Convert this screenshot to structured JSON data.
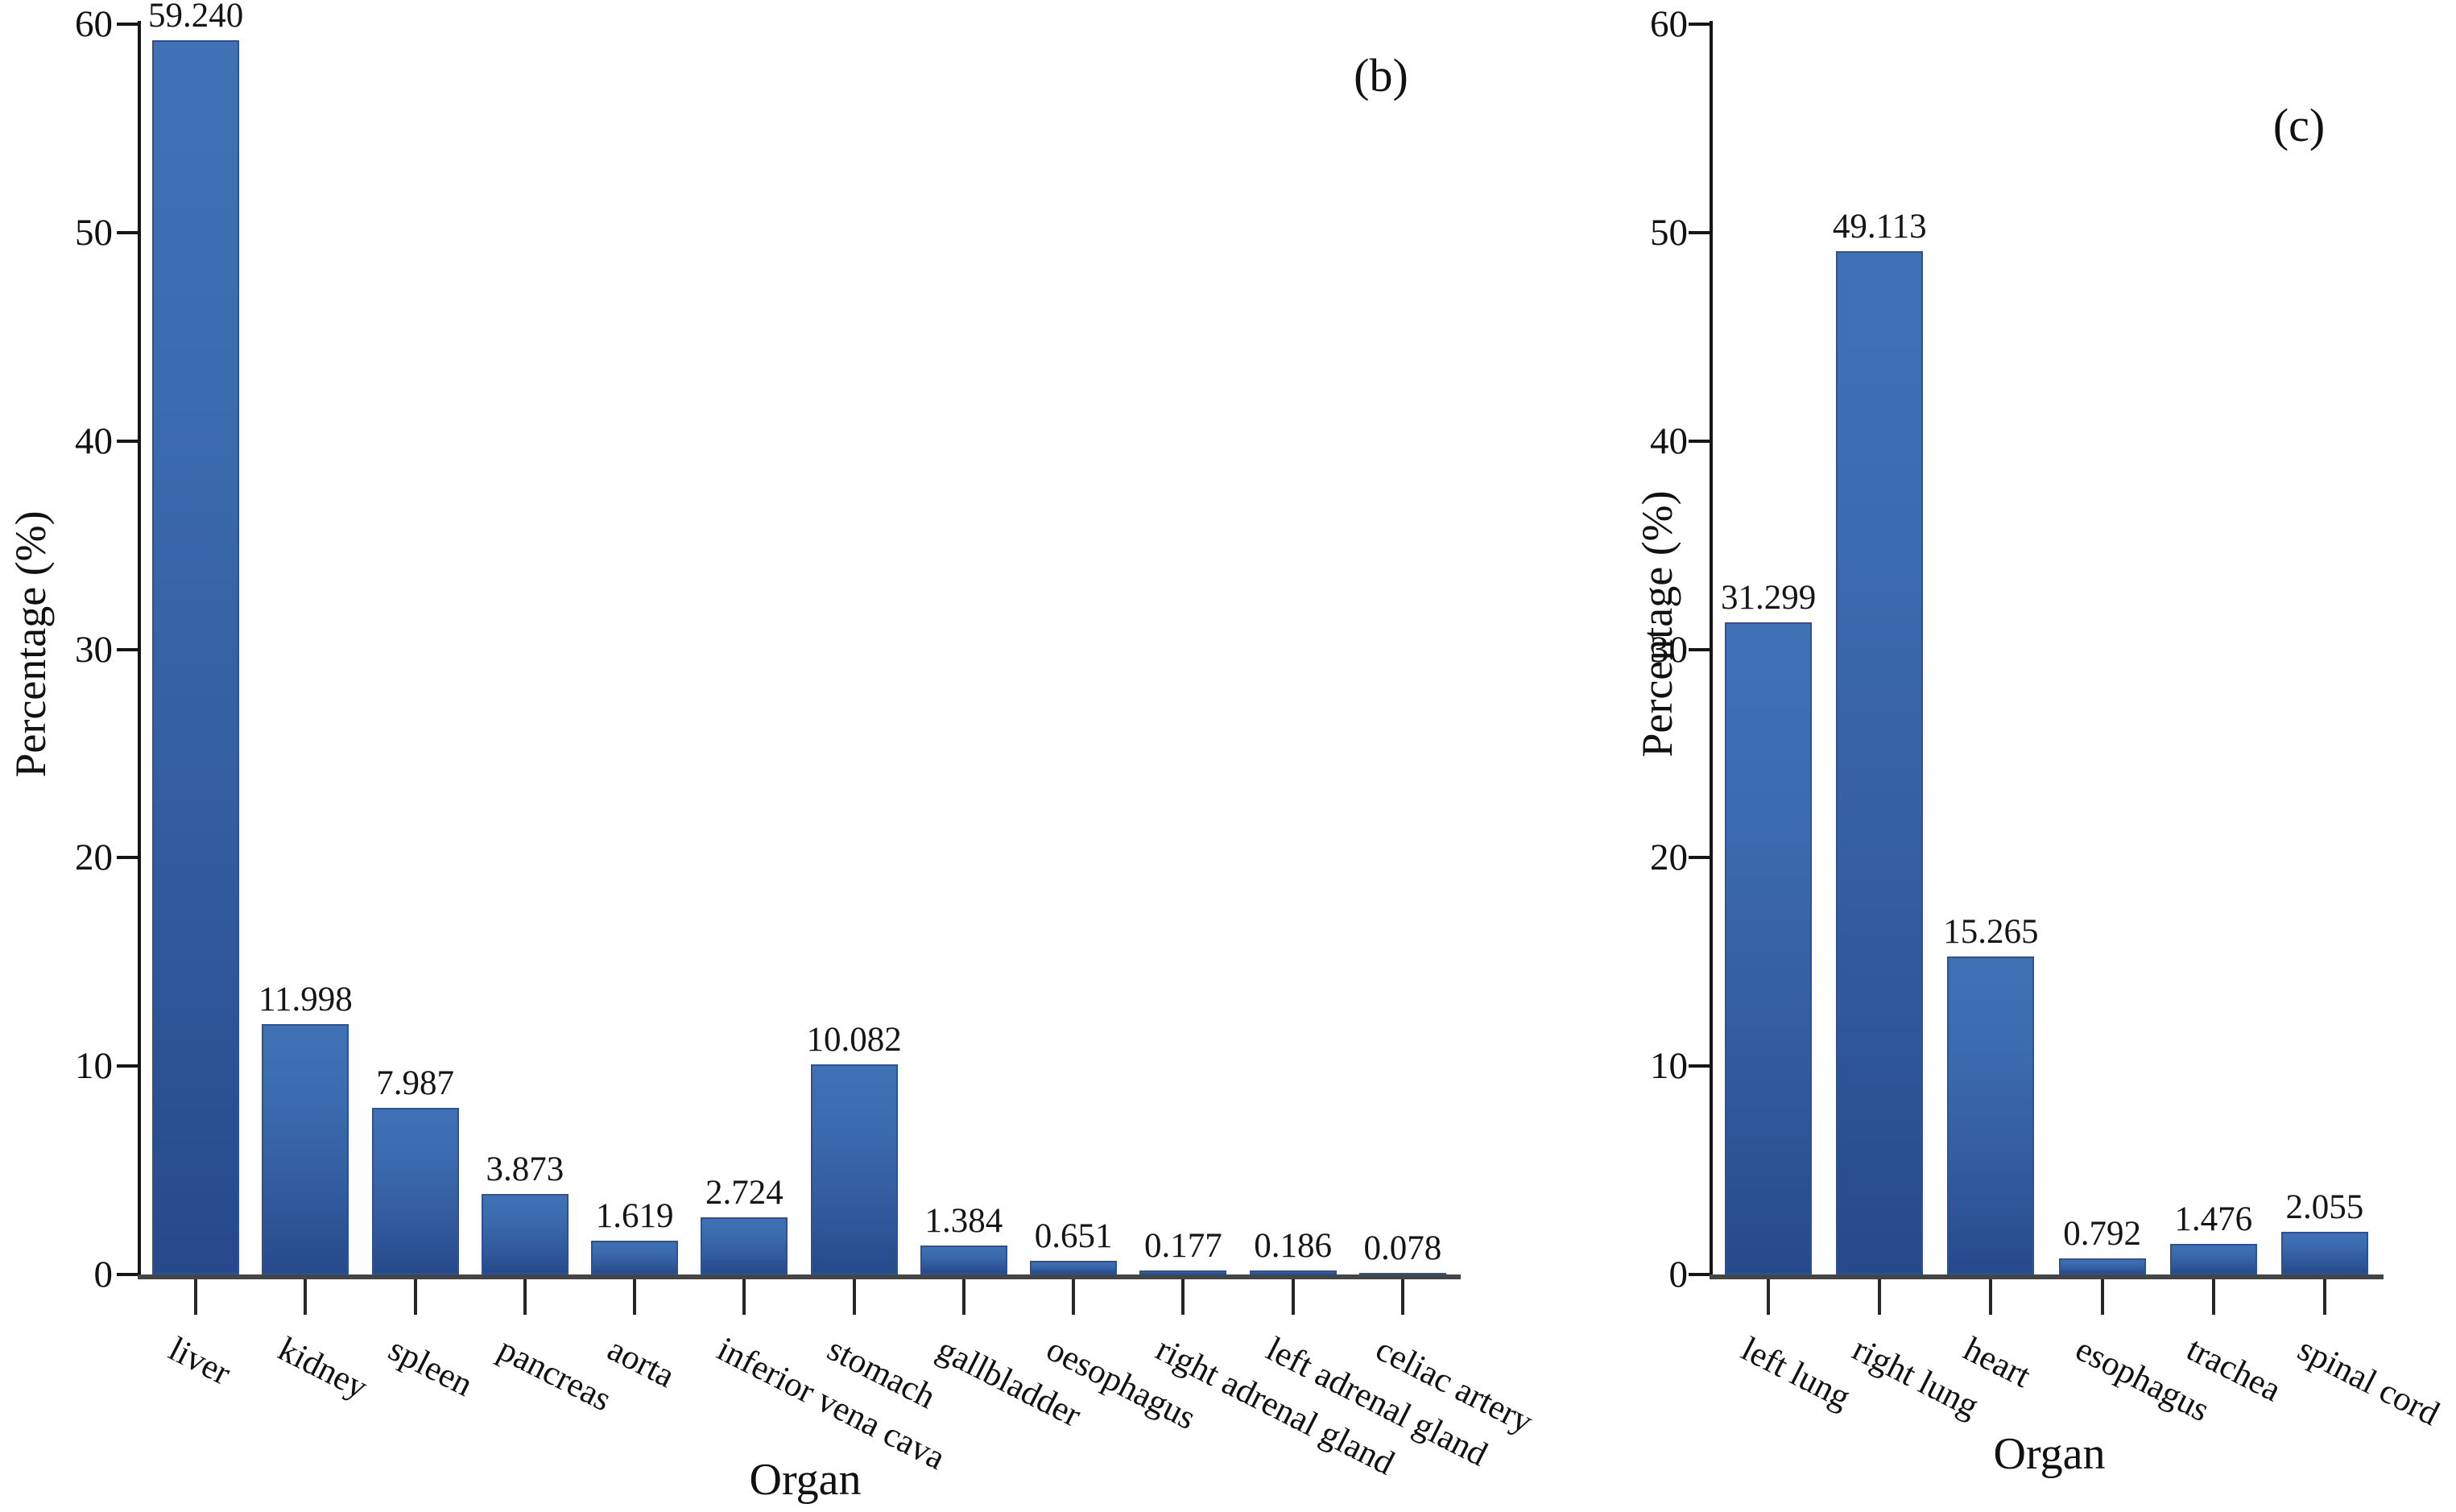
{
  "figure": {
    "background": "#ffffff",
    "text_color": "#111111",
    "axis_color": "#161616",
    "baseline_color": "#454545"
  },
  "chart_data": [
    {
      "type": "bar",
      "panel_label": "(b)",
      "xlabel": "Organ",
      "ylabel": "Percentage (%)",
      "ylim": [
        0,
        60
      ],
      "ytick_step": 10,
      "ytick_labels": [
        "0",
        "10",
        "20",
        "30",
        "40",
        "50",
        "60"
      ],
      "grid": false,
      "legend": null,
      "categories": [
        "liver",
        "kidney",
        "spleen",
        "pancreas",
        "aorta",
        "inferior vena cava",
        "stomach",
        "gallbladder",
        "oesophagus",
        "right adrenal gland",
        "left adrenal gland",
        "celiac artery"
      ],
      "values": [
        59.24,
        11.998,
        7.987,
        3.873,
        1.619,
        2.724,
        10.082,
        1.384,
        0.651,
        0.177,
        0.186,
        0.078
      ],
      "value_labels": [
        "59.240",
        "11.998",
        "7.987",
        "3.873",
        "1.619",
        "2.724",
        "10.082",
        "1.384",
        "0.651",
        "0.177",
        "0.186",
        "0.078"
      ],
      "colors": {
        "bar_top": "#4171b5",
        "bar_bottom": "#27498b",
        "bar_border": "#2d5292"
      }
    },
    {
      "type": "bar",
      "panel_label": "(c)",
      "xlabel": "Organ",
      "ylabel": "Percentage (%)",
      "ylim": [
        0,
        60
      ],
      "ytick_step": 10,
      "ytick_labels": [
        "0",
        "10",
        "20",
        "30",
        "40",
        "50",
        "60"
      ],
      "grid": false,
      "legend": null,
      "categories": [
        "left lung",
        "right lung",
        "heart",
        "esophagus",
        "trachea",
        "spinal cord"
      ],
      "values": [
        31.299,
        49.113,
        15.265,
        0.792,
        1.476,
        2.055
      ],
      "value_labels": [
        "31.299",
        "49.113",
        "15.265",
        "0.792",
        "1.476",
        "2.055"
      ],
      "colors": {
        "bar_top": "#4171b5",
        "bar_bottom": "#27498b",
        "bar_border": "#2d5292"
      }
    }
  ]
}
